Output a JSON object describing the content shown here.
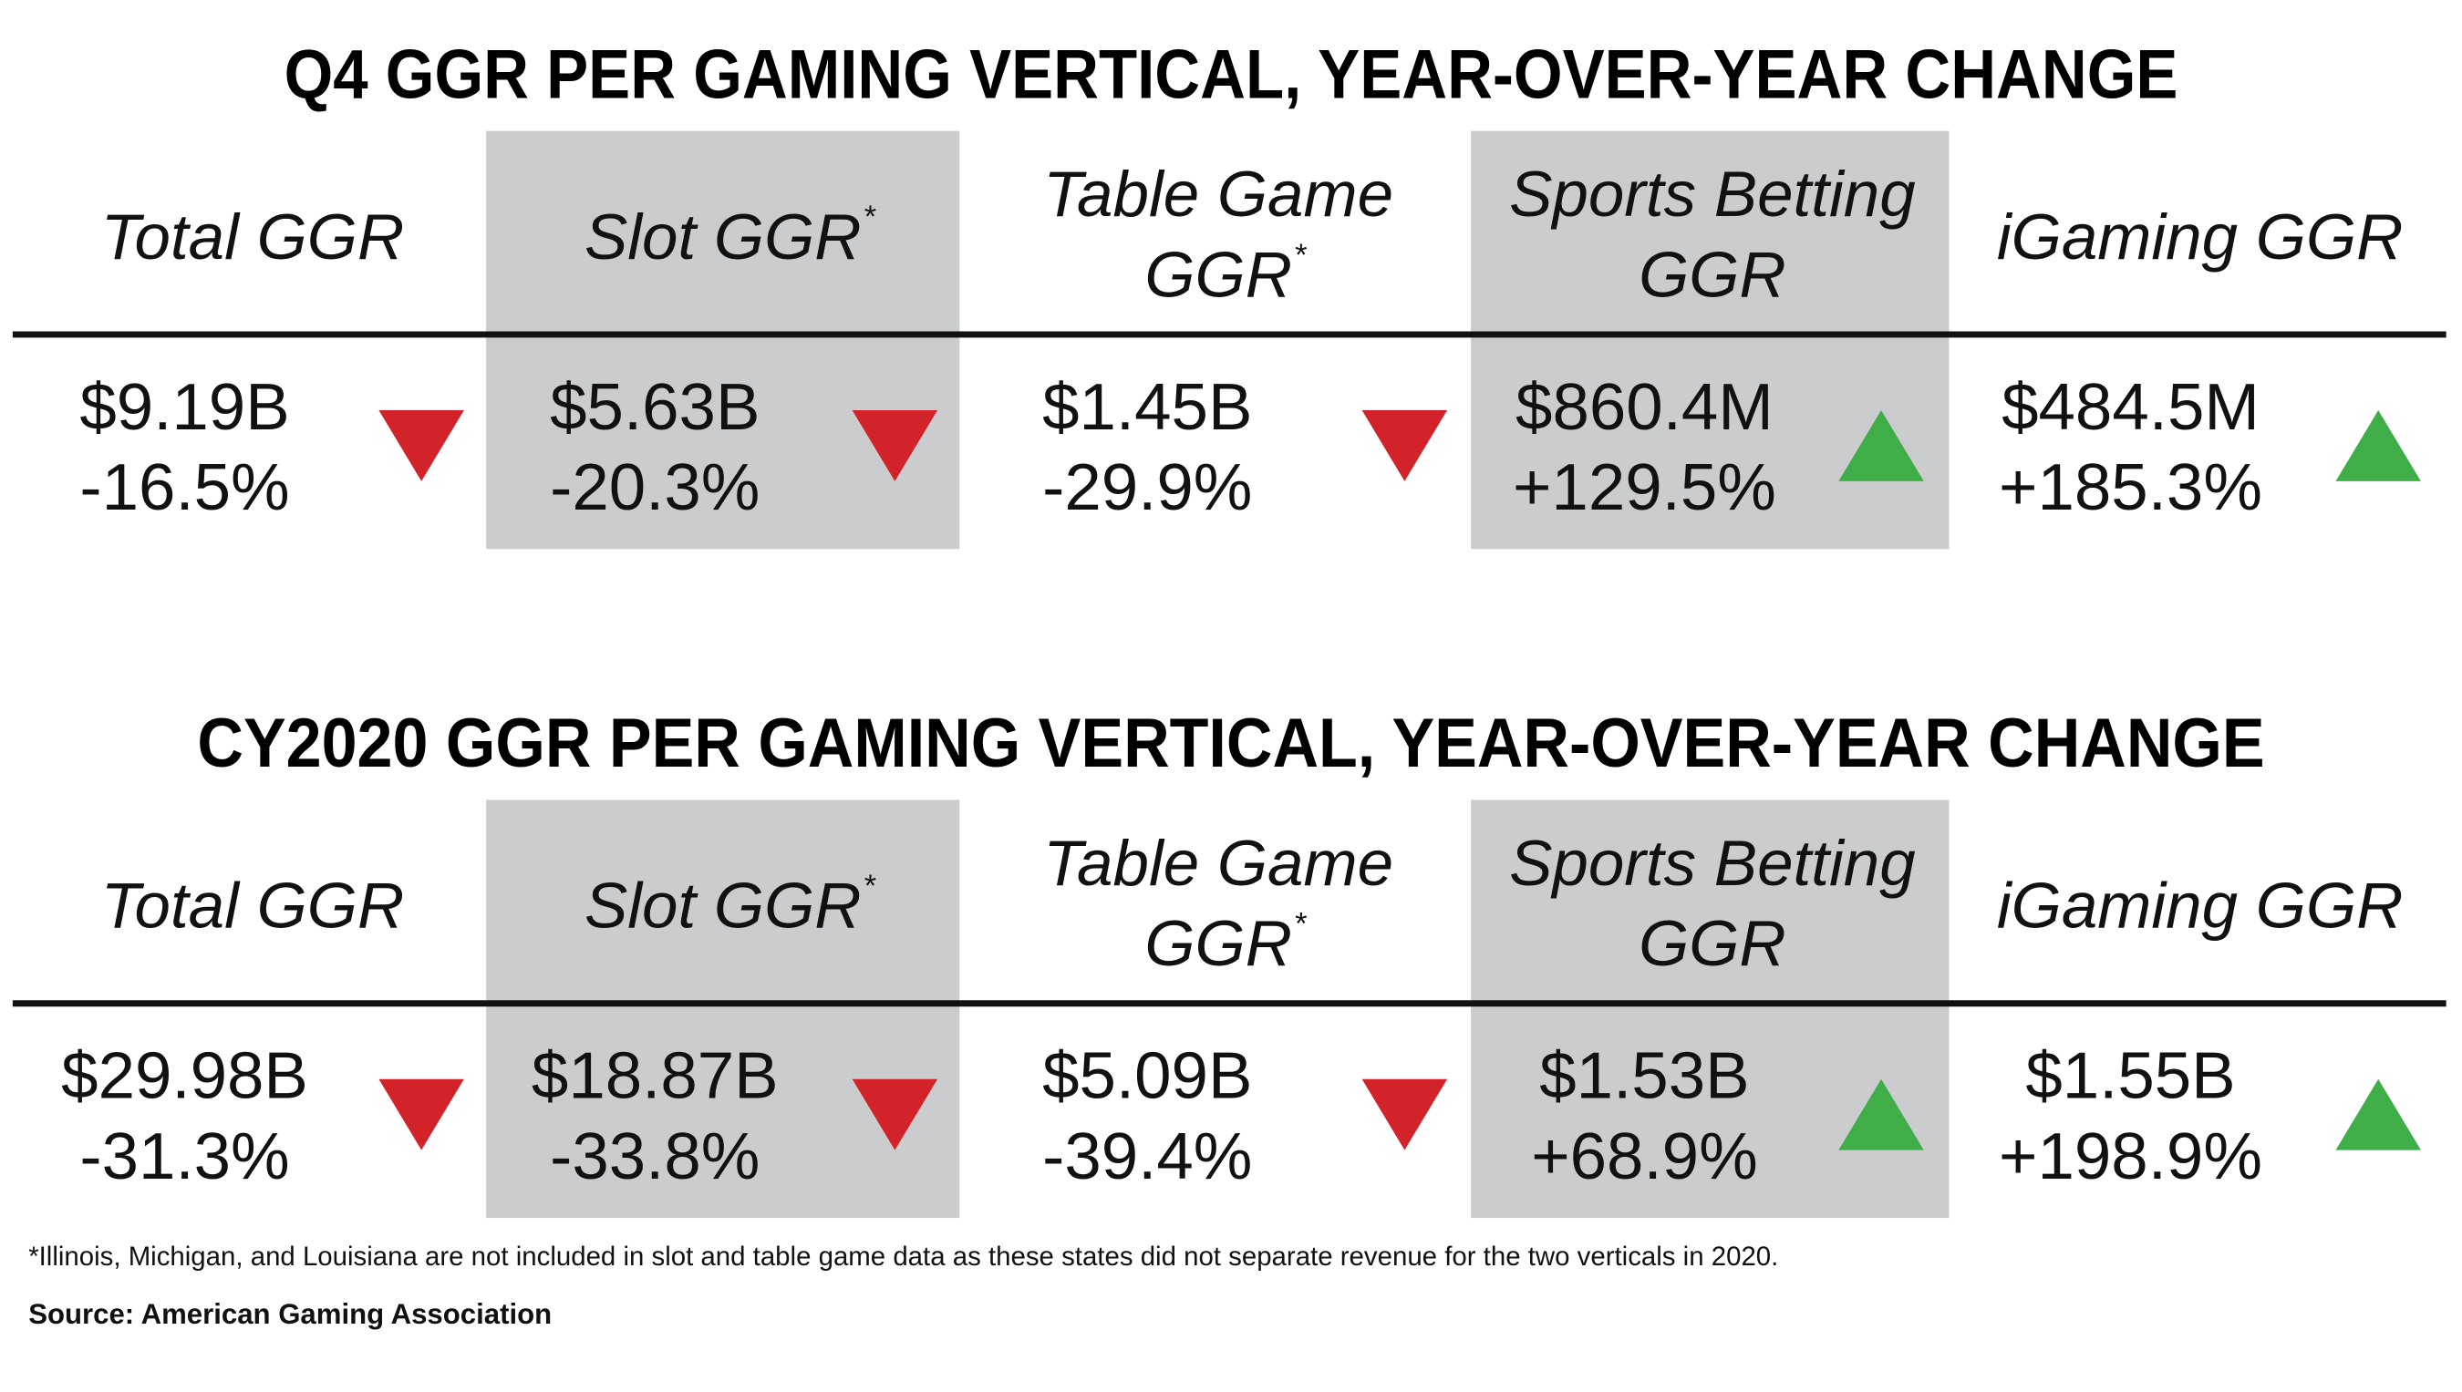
{
  "sections": [
    {
      "title": "Q4 GGR PER GAMING VERTICAL, YEAR-OVER-YEAR CHANGE",
      "columns": [
        {
          "header": [
            "Total GGR"
          ],
          "value": "$9.19B",
          "change": "-16.5%",
          "trend": "down"
        },
        {
          "header": [
            "Slot GGR"
          ],
          "marker": "*",
          "value": "$5.63B",
          "change": "-20.3%",
          "trend": "down"
        },
        {
          "header": [
            "Table Game",
            "GGR"
          ],
          "marker": "*",
          "value": "$1.45B",
          "change": "-29.9%",
          "trend": "down"
        },
        {
          "header": [
            "Sports Betting",
            "GGR"
          ],
          "value": "$860.4M",
          "change": "+129.5%",
          "trend": "up"
        },
        {
          "header": [
            "iGaming GGR"
          ],
          "value": "$484.5M",
          "change": "+185.3%",
          "trend": "up"
        }
      ]
    },
    {
      "title": "CY2020 GGR PER GAMING VERTICAL, YEAR-OVER-YEAR CHANGE",
      "columns": [
        {
          "header": [
            "Total GGR"
          ],
          "value": "$29.98B",
          "change": "-31.3%",
          "trend": "down"
        },
        {
          "header": [
            "Slot GGR"
          ],
          "marker": "*",
          "value": "$18.87B",
          "change": "-33.8%",
          "trend": "down"
        },
        {
          "header": [
            "Table Game",
            "GGR"
          ],
          "marker": "*",
          "value": "$5.09B",
          "change": "-39.4%",
          "trend": "down"
        },
        {
          "header": [
            "Sports Betting",
            "GGR"
          ],
          "value": "$1.53B",
          "change": "+68.9%",
          "trend": "up"
        },
        {
          "header": [
            "iGaming GGR"
          ],
          "value": "$1.55B",
          "change": "+198.9%",
          "trend": "up"
        }
      ]
    }
  ],
  "footnote": "*Illinois, Michigan, and Louisiana are not included in slot and table game data as these states did not separate revenue for the two verticals in 2020.",
  "source": "Source: American Gaming Association"
}
